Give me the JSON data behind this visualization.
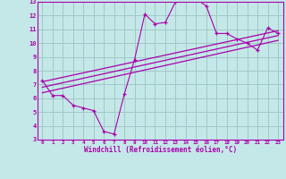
{
  "xlabel": "Windchill (Refroidissement éolien,°C)",
  "bg_color": "#c4e8e8",
  "grid_color": "#a0c8c8",
  "line_color": "#aa00aa",
  "xlim": [
    -0.5,
    23.5
  ],
  "ylim": [
    3,
    13
  ],
  "xticks": [
    0,
    1,
    2,
    3,
    4,
    5,
    6,
    7,
    8,
    9,
    10,
    11,
    12,
    13,
    14,
    15,
    16,
    17,
    18,
    19,
    20,
    21,
    22,
    23
  ],
  "yticks": [
    3,
    4,
    5,
    6,
    7,
    8,
    9,
    10,
    11,
    12,
    13
  ],
  "series1_x": [
    0,
    1,
    2,
    3,
    4,
    5,
    6,
    7,
    8,
    9,
    10,
    11,
    12,
    13,
    14,
    15,
    16,
    17,
    18,
    19,
    20,
    21,
    22,
    23
  ],
  "series1_y": [
    7.3,
    6.2,
    6.2,
    5.5,
    5.3,
    5.1,
    3.6,
    3.4,
    6.3,
    8.8,
    12.1,
    11.4,
    11.5,
    13.0,
    13.35,
    13.2,
    12.7,
    10.7,
    10.7,
    10.3,
    10.0,
    9.5,
    11.1,
    10.7
  ],
  "trend1_x": [
    0,
    23
  ],
  "trend1_y": [
    6.4,
    10.2
  ],
  "trend2_x": [
    0,
    23
  ],
  "trend2_y": [
    6.8,
    10.55
  ],
  "trend3_x": [
    0,
    23
  ],
  "trend3_y": [
    7.2,
    10.9
  ]
}
